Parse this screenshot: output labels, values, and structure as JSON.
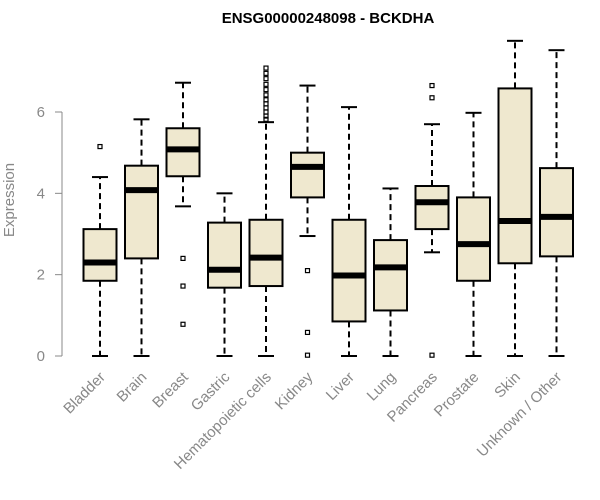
{
  "chart_data": {
    "type": "boxplot",
    "title": "ENSG00000248098 - BCKDHA",
    "xlabel": "",
    "ylabel": "Expression",
    "ylim": [
      0,
      7.8
    ],
    "yticks": [
      0,
      2,
      4,
      6
    ],
    "box_color": "#efe8cf",
    "categories": [
      "Bladder",
      "Brain",
      "Breast",
      "Gastric",
      "Hematopoietic cells",
      "Kidney",
      "Liver",
      "Lung",
      "Pancreas",
      "Prostate",
      "Skin",
      "Unknown / Other"
    ],
    "boxes": [
      {
        "name": "Bladder",
        "whisker_low": 0.0,
        "q1": 1.85,
        "median": 2.3,
        "q3": 3.12,
        "whisker_high": 4.4,
        "outliers": [
          5.15
        ]
      },
      {
        "name": "Brain",
        "whisker_low": 0.0,
        "q1": 2.4,
        "median": 4.08,
        "q3": 4.68,
        "whisker_high": 5.82,
        "outliers": []
      },
      {
        "name": "Breast",
        "whisker_low": 3.68,
        "q1": 4.42,
        "median": 5.08,
        "q3": 5.6,
        "whisker_high": 6.72,
        "outliers": [
          2.4,
          1.72,
          0.78
        ]
      },
      {
        "name": "Gastric",
        "whisker_low": 0.0,
        "q1": 1.68,
        "median": 2.12,
        "q3": 3.28,
        "whisker_high": 4.0,
        "outliers": []
      },
      {
        "name": "Hematopoietic cells",
        "whisker_low": 0.0,
        "q1": 1.72,
        "median": 2.42,
        "q3": 3.35,
        "whisker_high": 5.75,
        "outliers": [
          5.82,
          5.9,
          6.0,
          6.1,
          6.2,
          6.3,
          6.42,
          6.55,
          6.68,
          6.82,
          6.95,
          7.08
        ]
      },
      {
        "name": "Kidney",
        "whisker_low": 2.95,
        "q1": 3.9,
        "median": 4.65,
        "q3": 5.0,
        "whisker_high": 6.65,
        "outliers": [
          2.1,
          0.58,
          0.02
        ]
      },
      {
        "name": "Liver",
        "whisker_low": 0.0,
        "q1": 0.85,
        "median": 1.98,
        "q3": 3.35,
        "whisker_high": 6.12,
        "outliers": []
      },
      {
        "name": "Lung",
        "whisker_low": 0.0,
        "q1": 1.12,
        "median": 2.18,
        "q3": 2.85,
        "whisker_high": 4.12,
        "outliers": []
      },
      {
        "name": "Pancreas",
        "whisker_low": 2.55,
        "q1": 3.12,
        "median": 3.78,
        "q3": 4.18,
        "whisker_high": 5.7,
        "outliers": [
          6.65,
          6.35,
          0.02
        ]
      },
      {
        "name": "Prostate",
        "whisker_low": 0.0,
        "q1": 1.85,
        "median": 2.75,
        "q3": 3.9,
        "whisker_high": 5.98,
        "outliers": []
      },
      {
        "name": "Skin",
        "whisker_low": 0.0,
        "q1": 2.28,
        "median": 3.32,
        "q3": 6.58,
        "whisker_high": 7.75,
        "outliers": []
      },
      {
        "name": "Unknown / Other",
        "whisker_low": 0.0,
        "q1": 2.45,
        "median": 3.42,
        "q3": 4.62,
        "whisker_high": 7.52,
        "outliers": []
      }
    ]
  }
}
